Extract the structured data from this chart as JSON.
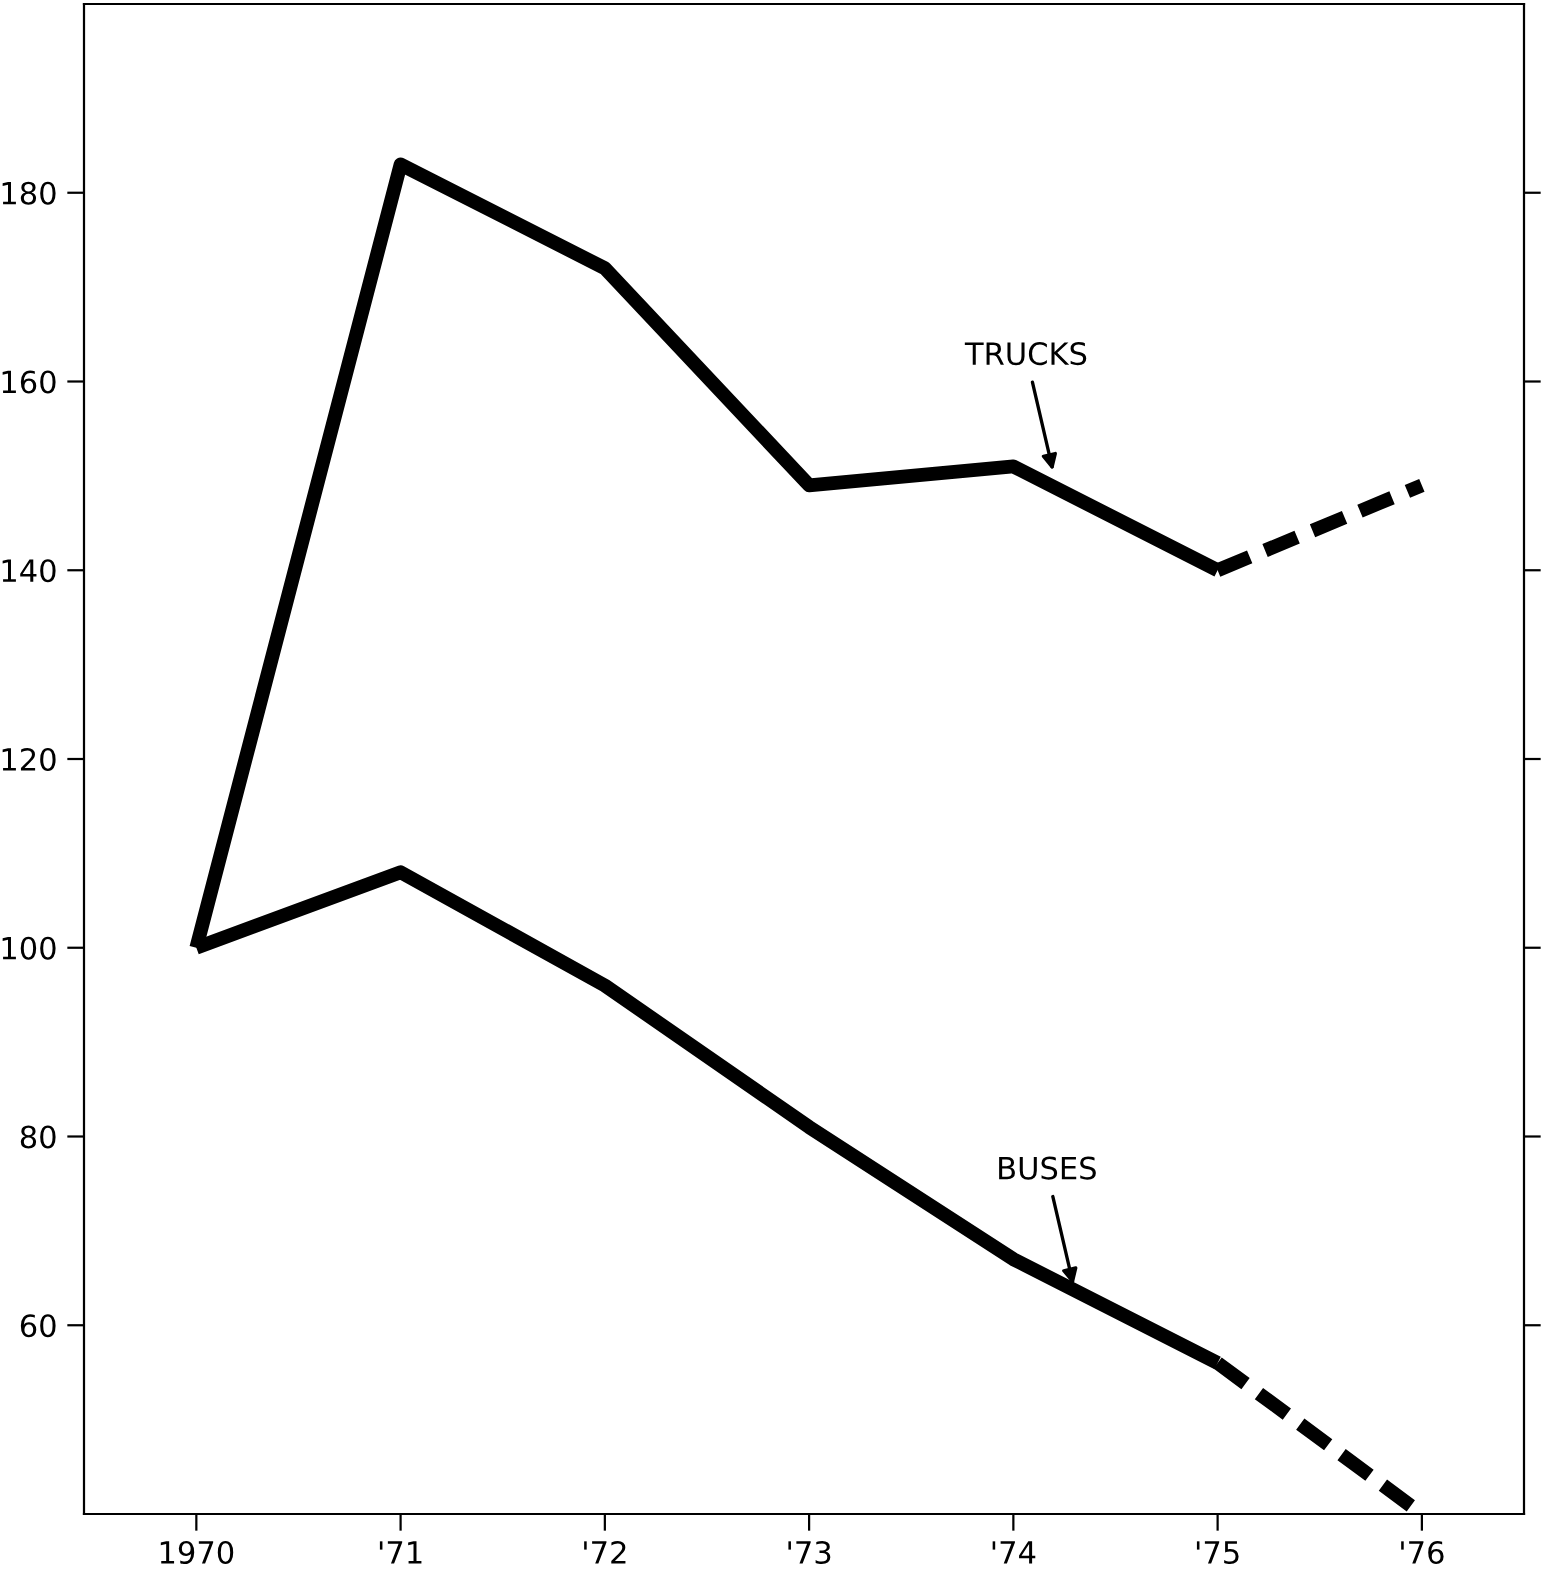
{
  "chart_data": {
    "type": "line",
    "xlim": [
      1969.45,
      1976.5
    ],
    "ylim": [
      40,
      200
    ],
    "xticks": [
      1970,
      {
        "value": 1971,
        "label": "'71"
      },
      {
        "value": 1972,
        "label": "'72"
      },
      {
        "value": 1973,
        "label": "'73"
      },
      {
        "value": 1974,
        "label": "'74"
      },
      {
        "value": 1975,
        "label": "'75"
      },
      {
        "value": 1976,
        "label": "'76"
      }
    ],
    "yticks": [
      60,
      80,
      100,
      120,
      140,
      160,
      180
    ],
    "grid": false,
    "marker": "none",
    "series": [
      {
        "color": "#000000",
        "line_style": "solid",
        "x": [
          1970,
          1971,
          1972,
          1973,
          1974,
          1975
        ],
        "values": [
          100,
          183,
          172,
          149,
          151,
          140
        ]
      },
      {
        "color": "#000000",
        "line_style": "dashed",
        "x": [
          1975,
          1976
        ],
        "values": [
          140,
          149
        ]
      },
      {
        "color": "#000000",
        "line_style": "solid",
        "x": [
          1970,
          1971,
          1972,
          1973,
          1974,
          1975
        ],
        "values": [
          100,
          108,
          96,
          81,
          67,
          56
        ]
      },
      {
        "color": "#000000",
        "line_style": "dashed",
        "x": [
          1975,
          1976
        ],
        "values": [
          56,
          40
        ]
      }
    ],
    "annotations": [
      {
        "text": "TRUCKS",
        "x": 1974.2,
        "y": 150
      },
      {
        "text": "BUSES",
        "x": 1974.3,
        "y": 63.7
      }
    ]
  }
}
